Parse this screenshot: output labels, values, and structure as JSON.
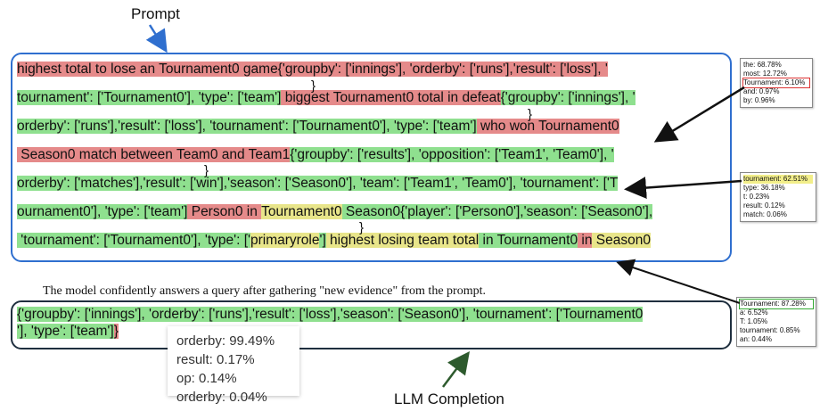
{
  "labels": {
    "prompt": "Prompt",
    "completion": "LLM Completion",
    "note": "The model confidently answers a query after gathering \"new evidence\" from the prompt."
  },
  "prompt_lines": [
    [
      [
        "r",
        "highest total to lose an Tournament0 game{'groupby': ['innings'], 'orderby': ['runs'],'result': ['loss'], '"
      ]
    ],
    [
      [
        "g",
        "tournament': ['Tournament0'], 'type': ['team']"
      ],
      [
        "r",
        " biggest Tournament0 total in defeat"
      ],
      [
        "g",
        "{'groupby': ['innings'], '"
      ]
    ],
    [
      [
        "g",
        "orderby': ['runs'],'result': ['loss'], 'tournament': ['Tournament0'], 'type': ['team']"
      ],
      [
        "r",
        " who won Tournament0"
      ]
    ],
    [
      [
        "r",
        " Season0 match between Team0 and Team1"
      ],
      [
        "g",
        "{'groupby': ['results'], 'opposition': ['Team1', 'Team0'], '"
      ]
    ],
    [
      [
        "g",
        "orderby': ['matches'],'result': ['win'],'season': ['Season0'], 'team': ['Team1', 'Team0'], 'tournament': ['T"
      ]
    ],
    [
      [
        "g",
        "ournament0'], 'type': ['team']"
      ],
      [
        "r",
        " Person0 in "
      ],
      [
        "y",
        "Tournament0"
      ],
      [
        "g",
        " Season0{'player': ['Person0'],'season': ['Season0'],"
      ]
    ],
    [
      [
        "g",
        " 'tournament': ['Tournament0'], 'type': ['"
      ],
      [
        "y",
        "primaryrole"
      ],
      [
        "g",
        "']"
      ],
      [
        "y",
        " highest losing team total"
      ],
      [
        "g",
        " in Tournament0"
      ],
      [
        "r",
        " in"
      ],
      [
        "y",
        " Season0"
      ]
    ]
  ],
  "braces": [
    "}",
    "}",
    "}",
    "}",
    "}"
  ],
  "completion_lines": [
    [
      [
        "g",
        "{'groupby': ['innings'], 'orderby': ['runs'],'result': ['loss'],'season': ['Season0'], 'tournament': ['Tournament0"
      ]
    ],
    [
      [
        "g",
        "'], 'type': ['team']"
      ],
      [
        "r",
        "}"
      ]
    ]
  ],
  "popups": [
    {
      "items": [
        "the: 68.78%",
        "most: 12.72%",
        "Tournament: 6.10%",
        "and: 0.97%",
        "by: 0.96%"
      ],
      "selected": 2,
      "style": "sel-red"
    },
    {
      "items": [
        "tournament: 62.51%",
        "type: 36.18%",
        "t: 0.23%",
        "result: 0.12%",
        "match: 0.06%"
      ],
      "selected": 0,
      "style": "sel-yel"
    },
    {
      "items": [
        "Tournament: 87.28%",
        "a: 6.52%",
        "T: 1.05%",
        "tournament: 0.85%",
        "an: 0.44%"
      ],
      "selected": 0,
      "style": "sel-grn"
    }
  ],
  "big_popup": [
    "orderby: 99.49%",
    "result: 0.17%",
    "op: 0.14%",
    "orderby: 0.04%"
  ],
  "colors": {
    "red": "#e58a8a",
    "green": "#8fe08f",
    "yellow": "#e8e58a",
    "blue_border": "#2f6fcf",
    "dark_arrow": "#2d5a2d"
  }
}
